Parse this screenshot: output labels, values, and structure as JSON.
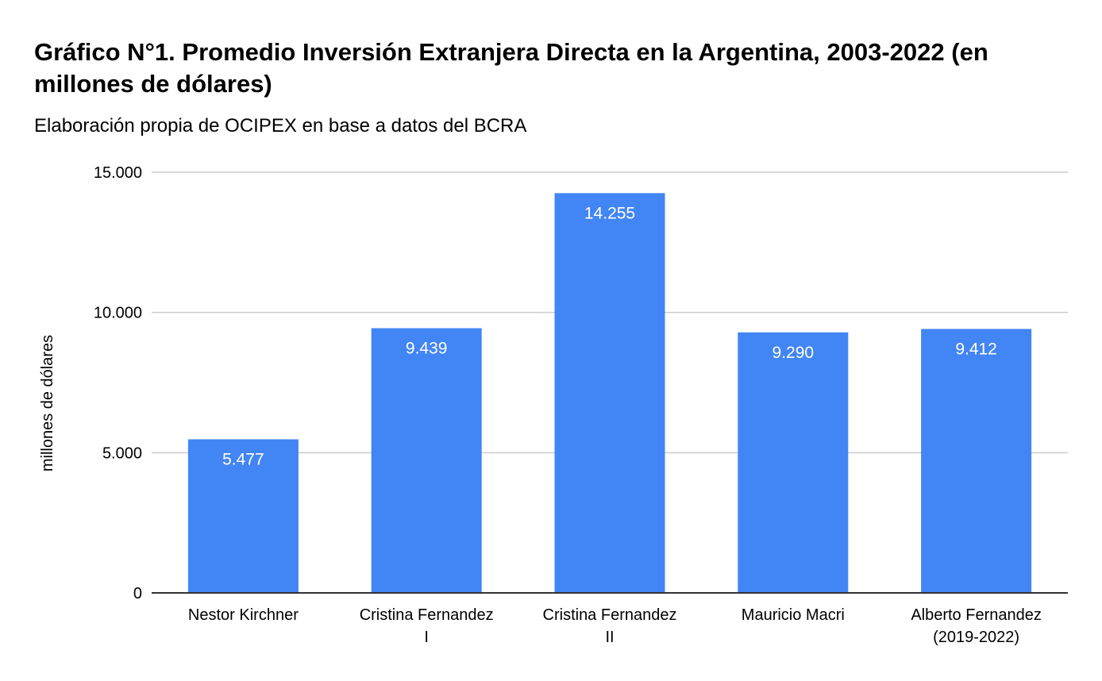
{
  "chart_data": {
    "type": "bar",
    "title": "Gráfico N°1. Promedio Inversión Extranjera Directa en la Argentina, 2003-2022 (en millones de dólares)",
    "subtitle": "Elaboración propia de OCIPEX en base a datos del BCRA",
    "xlabel": "",
    "ylabel": "millones de dólares",
    "ylim": [
      0,
      15000
    ],
    "yticks": [
      0,
      5000,
      10000,
      15000
    ],
    "ytick_labels": [
      "0",
      "5.000",
      "10.000",
      "15.000"
    ],
    "grid": true,
    "categories": [
      [
        "Nestor Kirchner"
      ],
      [
        "Cristina Fernandez",
        "I"
      ],
      [
        "Cristina Fernandez",
        "II"
      ],
      [
        "Mauricio Macri"
      ],
      [
        "Alberto Fernandez",
        "(2019-2022)"
      ]
    ],
    "values": [
      5477,
      9439,
      14255,
      9290,
      9412
    ],
    "value_labels": [
      "5.477",
      "9.439",
      "14.255",
      "9.290",
      "9.412"
    ],
    "bar_color": "#4285f4",
    "grid_color": "#cccccc",
    "axis_color": "#333333"
  }
}
